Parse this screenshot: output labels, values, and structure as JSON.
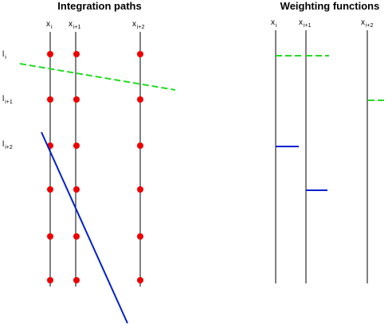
{
  "diagram": {
    "titles": [
      "Integration paths",
      "Weighting functions"
    ],
    "left_columns": [
      {
        "base": "x",
        "sub": "i"
      },
      {
        "base": "x",
        "sub": "i+1"
      },
      {
        "base": "x",
        "sub": "i+2"
      }
    ],
    "right_columns": [
      {
        "base": "x",
        "sub": "i"
      },
      {
        "base": "x",
        "sub": "i+1"
      },
      {
        "base": "x",
        "sub": "i+2"
      }
    ],
    "row_labels": [
      {
        "base": "l",
        "sub": "i"
      },
      {
        "base": "l",
        "sub": "i+1"
      },
      {
        "base": "l",
        "sub": "i+2"
      }
    ]
  }
}
